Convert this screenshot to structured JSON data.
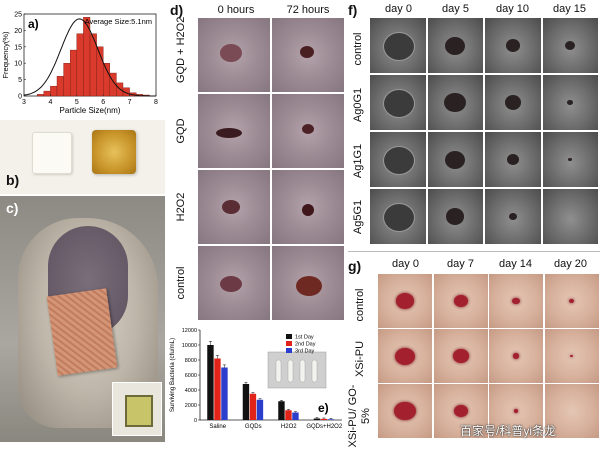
{
  "panels": {
    "a": "a)",
    "b": "b)",
    "c": "c)",
    "d": "d)",
    "e": "e)",
    "f": "f)",
    "g": "g)"
  },
  "panel_d": {
    "columns": [
      "0 hours",
      "72 hours"
    ],
    "rows": [
      "GQD + H2O2",
      "GQD",
      "H2O2",
      "control"
    ]
  },
  "panel_f": {
    "columns": [
      "day 0",
      "day 5",
      "day 10",
      "day 15"
    ],
    "rows": [
      "control",
      "Ag0G1",
      "Ag1G1",
      "Ag5G1"
    ]
  },
  "panel_g": {
    "columns": [
      "day 0",
      "day 7",
      "day 14",
      "day 20"
    ],
    "rows": [
      "control",
      "XSi-PU",
      "XSi-PU/ GO-5%"
    ]
  },
  "watermark": "百家号/科普yi条龙",
  "chart_data": [
    {
      "id": "a",
      "type": "bar",
      "annotation": "Average Size:5.1nm",
      "xlabel": "Particle Size(nm)",
      "ylabel": "Frequency(%)",
      "xlim": [
        3,
        8
      ],
      "ylim": [
        0,
        25
      ],
      "x_ticks": [
        3,
        4,
        5,
        6,
        7,
        8
      ],
      "y_ticks": [
        0,
        5,
        10,
        15,
        20,
        25
      ],
      "bin_width": 0.25,
      "bins_start": [
        3.5,
        3.75,
        4.0,
        4.25,
        4.5,
        4.75,
        5.0,
        5.25,
        5.5,
        5.75,
        6.0,
        6.25,
        6.5,
        6.75,
        7.0,
        7.25,
        7.5
      ],
      "values": [
        0.5,
        1.5,
        3,
        6,
        10,
        14,
        19,
        24,
        19,
        15,
        10,
        7,
        4,
        2.5,
        1,
        0.5,
        0.3
      ],
      "fit": "gaussian",
      "fit_mean": 5.1,
      "fit_sd": 0.7,
      "fit_peak": 23.5,
      "bar_color": "#d93a2b"
    },
    {
      "id": "e",
      "type": "bar",
      "ylabel": "Surviving Bacteria (cfu/mL)",
      "categories": [
        "Saline",
        "GQDs",
        "H2O2",
        "GQDs+H2O2"
      ],
      "ylim": [
        0,
        12000
      ],
      "y_ticks": [
        0,
        2000,
        4000,
        6000,
        8000,
        10000,
        12000
      ],
      "series": [
        {
          "name": "1st Day",
          "color": "#111111",
          "values": [
            10000,
            4800,
            2500,
            200
          ]
        },
        {
          "name": "2nd Day",
          "color": "#e2231a",
          "values": [
            8200,
            3500,
            1300,
            150
          ]
        },
        {
          "name": "3rd Day",
          "color": "#2c3fcc",
          "values": [
            7000,
            2700,
            1000,
            100
          ]
        }
      ],
      "legend": "top-right"
    }
  ]
}
